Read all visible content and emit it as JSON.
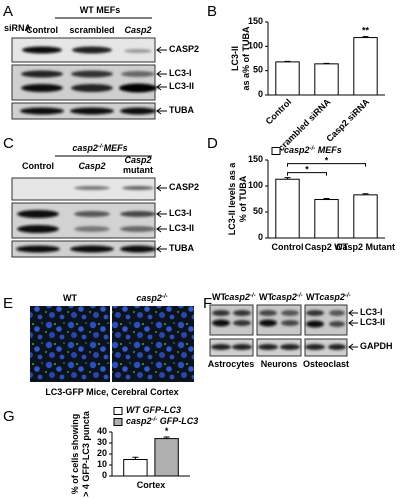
{
  "panels": {
    "A": {
      "letter": "A",
      "title": "WT MEFs",
      "row_label": "siRNA",
      "columns": [
        "Control",
        "scrambled",
        "Casp2"
      ],
      "bands": [
        "CASP2",
        "LC3-I",
        "LC3-II",
        "TUBA"
      ]
    },
    "C": {
      "letter": "C",
      "title": "casp2-/-MEFs",
      "columns": [
        [
          "Control"
        ],
        [
          "Casp2"
        ],
        [
          "Casp2",
          "mutant"
        ]
      ],
      "bands": [
        "CASP2",
        "LC3-I",
        "LC3-II",
        "TUBA"
      ]
    },
    "E": {
      "letter": "E",
      "columns": [
        "WT",
        "casp2-/-"
      ],
      "caption": "LC3-GFP Mice, Cerebral Cortex"
    },
    "F": {
      "letter": "F",
      "columns": [
        "WT",
        "casp2-/-",
        "WT",
        "casp2-/-",
        "WT",
        "casp2-/-"
      ],
      "bands": [
        "LC3-I",
        "LC3-II",
        "GAPDH"
      ],
      "groups": [
        "Astrocytes",
        "Neurons",
        "Osteoclast"
      ]
    }
  },
  "chart_data": [
    {
      "type": "bar",
      "panel": "B",
      "y_label": [
        "LC3-II",
        "as a% of TUBA"
      ],
      "categories": [
        "Control",
        "Scrambled siRNA",
        "Casp2 siRNA"
      ],
      "series": [
        {
          "color": "#ffffff",
          "values": [
            68,
            64,
            118
          ],
          "errors": [
            1,
            1,
            2
          ]
        }
      ],
      "ylim": [
        0,
        150
      ],
      "yticks": [
        0,
        50,
        100,
        150
      ],
      "annotations": [
        "**"
      ]
    },
    {
      "type": "bar",
      "panel": "D",
      "y_label": [
        "LC3-II levels as a",
        "% of TUBA"
      ],
      "categories": [
        "Control",
        "Casp2 WT",
        "Casp2 Mutant"
      ],
      "series": [
        {
          "name": "casp2-/- MEFs",
          "color": "#ffffff",
          "values": [
            113,
            74,
            83
          ],
          "errors": [
            3,
            2,
            2
          ]
        }
      ],
      "ylim": [
        0,
        150
      ],
      "yticks": [
        0,
        50,
        100,
        150
      ],
      "annotations": [
        "*",
        "*"
      ]
    },
    {
      "type": "bar",
      "panel": "G",
      "y_label": [
        "% of cells showing",
        "> 4 GFP-LC3 puncta"
      ],
      "categories": [
        "Cortex"
      ],
      "series": [
        {
          "name": "WT GFP-LC3",
          "color": "#ffffff",
          "values": [
            15
          ],
          "errors": [
            2
          ]
        },
        {
          "name": "casp2-/- GFP-LC3",
          "color": "#b0b0b0",
          "values": [
            34
          ],
          "errors": [
            1.5
          ]
        }
      ],
      "ylim": [
        0,
        40
      ],
      "yticks": [
        0,
        10,
        20,
        30,
        40
      ],
      "annotations": [
        "*"
      ]
    }
  ]
}
